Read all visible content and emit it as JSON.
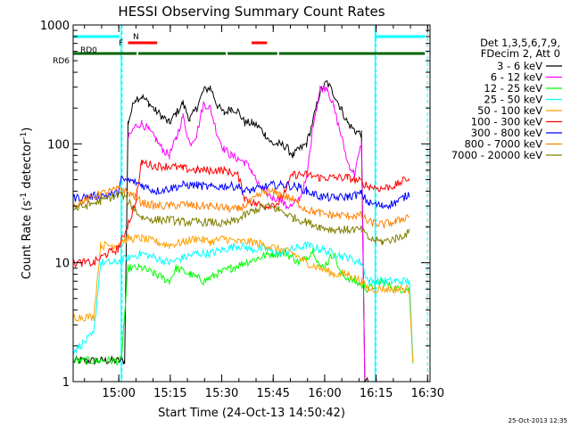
{
  "chart_data": {
    "type": "line",
    "title": "HESSI Observing Summary Count Rates",
    "xlabel": "Start Time (24-Oct-13 14:50:42)",
    "ylabel_main": "Count Rate (s",
    "ylabel_sup1": "-1",
    "ylabel_mid": " detector",
    "ylabel_sup2": "-1",
    "ylabel_end": ")",
    "x_unit": "minutes after 14:50:42",
    "xlim": [
      -4,
      100
    ],
    "ylim": [
      1,
      1000
    ],
    "y_scale": "log",
    "x_ticks": [
      {
        "pos": 9.3,
        "label": "15:00"
      },
      {
        "pos": 24.3,
        "label": "15:15"
      },
      {
        "pos": 39.3,
        "label": "15:30"
      },
      {
        "pos": 54.3,
        "label": "15:45"
      },
      {
        "pos": 69.3,
        "label": "16:00"
      },
      {
        "pos": 84.3,
        "label": "16:15"
      },
      {
        "pos": 99.3,
        "label": "16:30"
      }
    ],
    "y_ticks": [
      {
        "value": 1,
        "label": "1"
      },
      {
        "value": 10,
        "label": "10"
      },
      {
        "value": 100,
        "label": "100"
      },
      {
        "value": 1000,
        "label": "1000"
      }
    ],
    "legend_header": [
      "Det 1,3,5,6,7,9,",
      "FDecim 2, Att 0"
    ],
    "legend_placement": "right",
    "series": [
      {
        "name": "3 - 6 keV",
        "color": "#000000",
        "x": [
          -4,
          11,
          12,
          14,
          16,
          18,
          20,
          22,
          24,
          26,
          28,
          30,
          32,
          34,
          36,
          38,
          40,
          42,
          44,
          46,
          48,
          50,
          52,
          54,
          56,
          58,
          60,
          62,
          64,
          66,
          68,
          70,
          72,
          74,
          76,
          78,
          80,
          81,
          82
        ],
        "y": [
          1.5,
          1.5,
          150,
          240,
          250,
          220,
          190,
          170,
          150,
          180,
          220,
          160,
          200,
          280,
          300,
          210,
          180,
          200,
          190,
          150,
          150,
          140,
          120,
          100,
          100,
          95,
          80,
          90,
          100,
          160,
          280,
          330,
          260,
          200,
          150,
          130,
          120,
          1,
          1
        ]
      },
      {
        "name": "6 - 12 keV",
        "color": "#ff00ff",
        "x": [
          12,
          14,
          16,
          18,
          20,
          22,
          24,
          26,
          28,
          30,
          32,
          34,
          36,
          38,
          40,
          42,
          44,
          46,
          48,
          50,
          52,
          54,
          56,
          58,
          60,
          62,
          64,
          66,
          68,
          70,
          72,
          74,
          76,
          78,
          80,
          81
        ],
        "y": [
          110,
          140,
          150,
          130,
          110,
          90,
          80,
          110,
          170,
          100,
          120,
          220,
          200,
          120,
          90,
          80,
          75,
          70,
          60,
          45,
          40,
          35,
          35,
          30,
          30,
          35,
          50,
          150,
          290,
          300,
          200,
          120,
          70,
          55,
          100,
          1
        ]
      },
      {
        "name": "12 - 25 keV",
        "color": "#00ff00",
        "x": [
          -4,
          10,
          12,
          16,
          20,
          24,
          26,
          30,
          34,
          38,
          42,
          46,
          50,
          54,
          58,
          62,
          64,
          66,
          68,
          70,
          72,
          74,
          78,
          82,
          86,
          90,
          94,
          95
        ],
        "y": [
          1.5,
          1.5,
          9,
          9,
          8,
          7,
          9,
          8,
          7,
          8,
          9,
          10,
          11,
          12,
          12,
          10,
          11,
          13,
          9,
          10,
          12,
          8,
          7,
          6,
          7,
          6,
          6,
          1.5
        ]
      },
      {
        "name": "25 - 50 keV",
        "color": "#00ffff",
        "x": [
          -4,
          2,
          4,
          8,
          12,
          16,
          20,
          24,
          28,
          32,
          36,
          40,
          44,
          48,
          52,
          56,
          60,
          64,
          68,
          72,
          76,
          80,
          82,
          86,
          90,
          94,
          95
        ],
        "y": [
          1.8,
          2.5,
          10,
          10,
          11,
          12,
          11,
          10,
          11,
          12,
          12,
          13,
          14,
          13,
          13,
          12,
          13,
          14,
          13,
          12,
          11,
          10,
          7,
          7,
          7,
          7,
          1.5
        ]
      },
      {
        "name": "50 - 100 keV",
        "color": "#ffa000",
        "x": [
          -4,
          2,
          4,
          8,
          12,
          16,
          20,
          24,
          28,
          32,
          36,
          40,
          44,
          48,
          52,
          56,
          60,
          64,
          68,
          72,
          76,
          80,
          82,
          86,
          90,
          94,
          95
        ],
        "y": [
          3.5,
          3.5,
          14,
          14,
          16,
          16,
          15,
          14,
          15,
          16,
          15,
          16,
          15,
          15,
          14,
          13,
          12,
          10,
          9,
          8,
          8,
          7,
          6,
          6,
          6,
          6,
          1.5
        ]
      },
      {
        "name": "100 - 300 keV",
        "color": "#ff0000",
        "x": [
          -4,
          2,
          6,
          9,
          10,
          14,
          16,
          20,
          24,
          28,
          32,
          36,
          40,
          44,
          46,
          48,
          52,
          56,
          60,
          64,
          68,
          72,
          76,
          80,
          82,
          86,
          90,
          94
        ],
        "y": [
          10,
          10,
          12,
          13,
          15,
          30,
          70,
          65,
          65,
          62,
          60,
          60,
          60,
          55,
          35,
          32,
          30,
          32,
          55,
          55,
          52,
          52,
          52,
          48,
          44,
          42,
          45,
          52
        ]
      },
      {
        "name": "300 - 800 keV",
        "color": "#0000ff",
        "x": [
          -4,
          9,
          10,
          14,
          16,
          20,
          24,
          28,
          32,
          36,
          40,
          44,
          46,
          50,
          54,
          58,
          62,
          64,
          68,
          72,
          76,
          80,
          82,
          86,
          90,
          94
        ],
        "y": [
          35,
          38,
          50,
          48,
          45,
          40,
          42,
          45,
          45,
          43,
          44,
          44,
          40,
          42,
          45,
          45,
          43,
          40,
          36,
          35,
          36,
          38,
          32,
          30,
          32,
          38
        ]
      },
      {
        "name": "800 - 7000 keV",
        "color": "#ff8000",
        "x": [
          -4,
          4,
          10,
          14,
          16,
          20,
          24,
          28,
          32,
          36,
          40,
          44,
          48,
          52,
          56,
          60,
          64,
          68,
          72,
          76,
          80,
          82,
          86,
          90,
          94
        ],
        "y": [
          30,
          38,
          42,
          36,
          32,
          30,
          30,
          31,
          30,
          30,
          29,
          28,
          33,
          40,
          38,
          34,
          28,
          26,
          25,
          25,
          25,
          22,
          21,
          22,
          25
        ]
      },
      {
        "name": "7000 - 20000 keV",
        "color": "#808000",
        "x": [
          -4,
          4,
          10,
          14,
          16,
          20,
          24,
          28,
          32,
          36,
          40,
          44,
          48,
          52,
          56,
          60,
          64,
          68,
          72,
          76,
          80,
          82,
          86,
          90,
          94
        ],
        "y": [
          28,
          33,
          38,
          28,
          24,
          23,
          23,
          22,
          22,
          22,
          21,
          23,
          27,
          30,
          28,
          24,
          22,
          20,
          19,
          19,
          19,
          16,
          15,
          16,
          18
        ]
      }
    ],
    "flags": [
      {
        "name": "SAA",
        "color": "#00ffff",
        "row": 0,
        "label": "N",
        "segments": [
          [
            -4,
            10
          ],
          [
            84,
            99
          ]
        ]
      },
      {
        "name": "Flare",
        "color": "#ff0000",
        "row": 1,
        "label": "F",
        "segments": [
          [
            12,
            21
          ],
          [
            48,
            53
          ]
        ]
      },
      {
        "name": "Night",
        "color": "#006400",
        "row": 2,
        "label": "RD0",
        "segments": [
          [
            -4,
            15
          ],
          [
            15,
            41
          ],
          [
            41,
            56
          ],
          [
            56,
            99
          ]
        ]
      }
    ],
    "vertical_lines": [
      10,
      84
    ],
    "dashed_lines": [
      10,
      84,
      99
    ]
  },
  "timestamp": "25-Oct-2013 12:35"
}
